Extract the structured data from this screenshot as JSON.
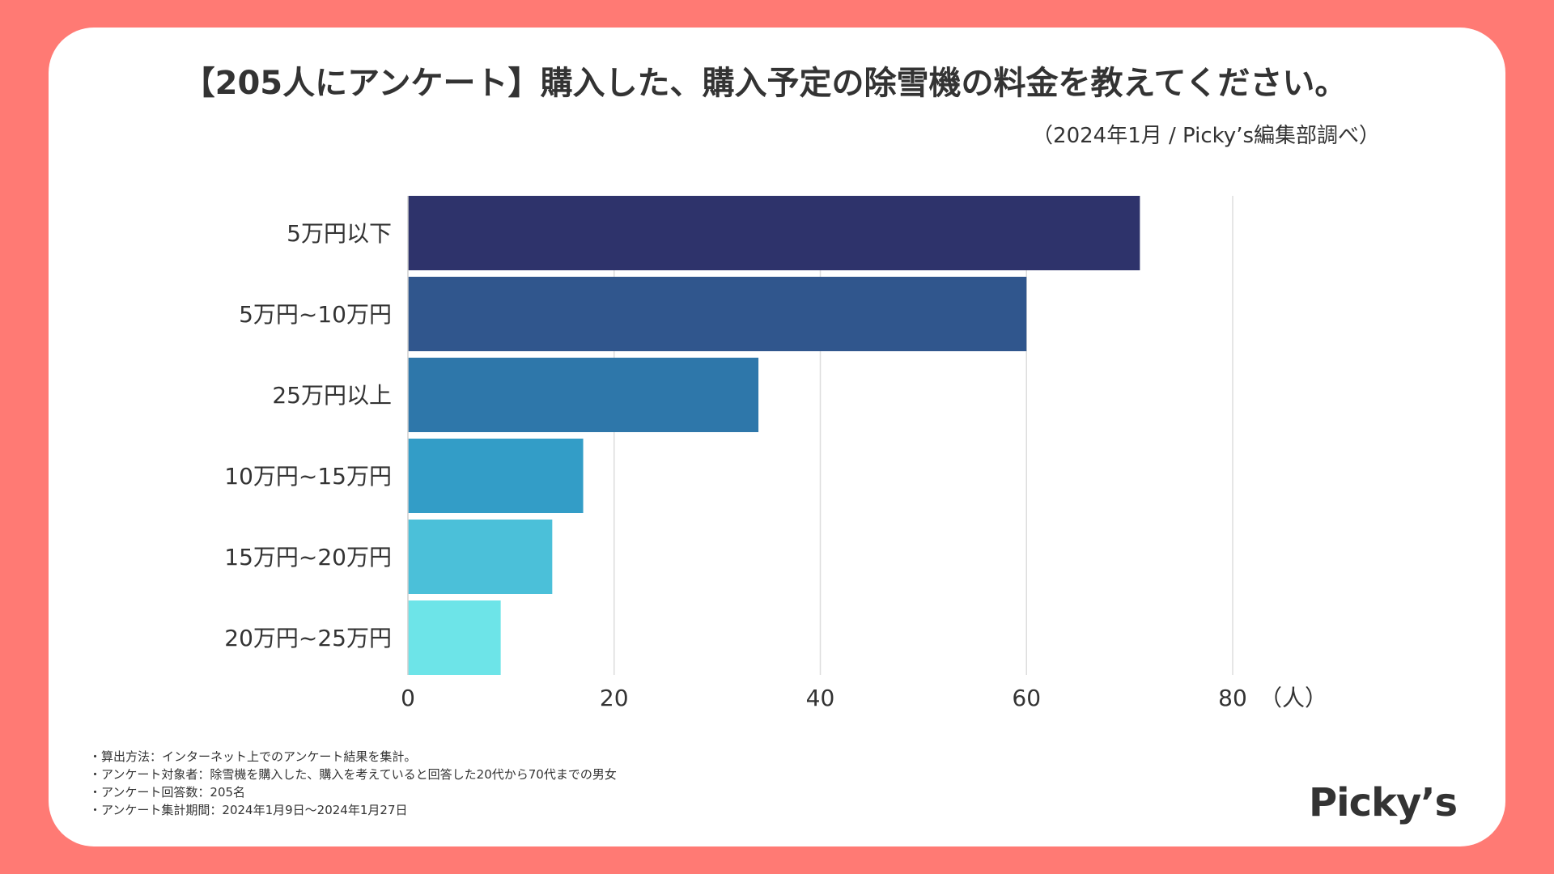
{
  "chart_data": {
    "type": "bar",
    "orientation": "horizontal",
    "title": "【205人にアンケート】購入した、購入予定の除雪機の料金を教えてください。",
    "subtitle": "（2024年1月 / Picky’s編集部調べ）",
    "categories": [
      "5万円以下",
      "5万円~10万円",
      "25万円以上",
      "10万円~15万円",
      "15万円~20万円",
      "20万円~25万円"
    ],
    "values": [
      71,
      60,
      34,
      17,
      14,
      9
    ],
    "bar_colors": [
      "#2e336b",
      "#30568d",
      "#2e77aa",
      "#339dc7",
      "#4bc0d9",
      "#6de4e8"
    ],
    "xlim": [
      0,
      80
    ],
    "xticks": [
      0,
      20,
      40,
      60,
      80
    ],
    "xlabel": "（人）",
    "grid": true
  },
  "footnotes": [
    "算出方法：インターネット上でのアンケート結果を集計。",
    "アンケート対象者：除雪機を購入した、購入を考えていると回答した20代から70代までの男女",
    "アンケート回答数：205名",
    "アンケート集計期間：2024年1月9日〜2024年1月27日"
  ],
  "logo_text": "Picky’s",
  "colors": {
    "background": "#ff7a74",
    "card": "#ffffff",
    "text": "#333333",
    "gridline": "#dddddd"
  }
}
